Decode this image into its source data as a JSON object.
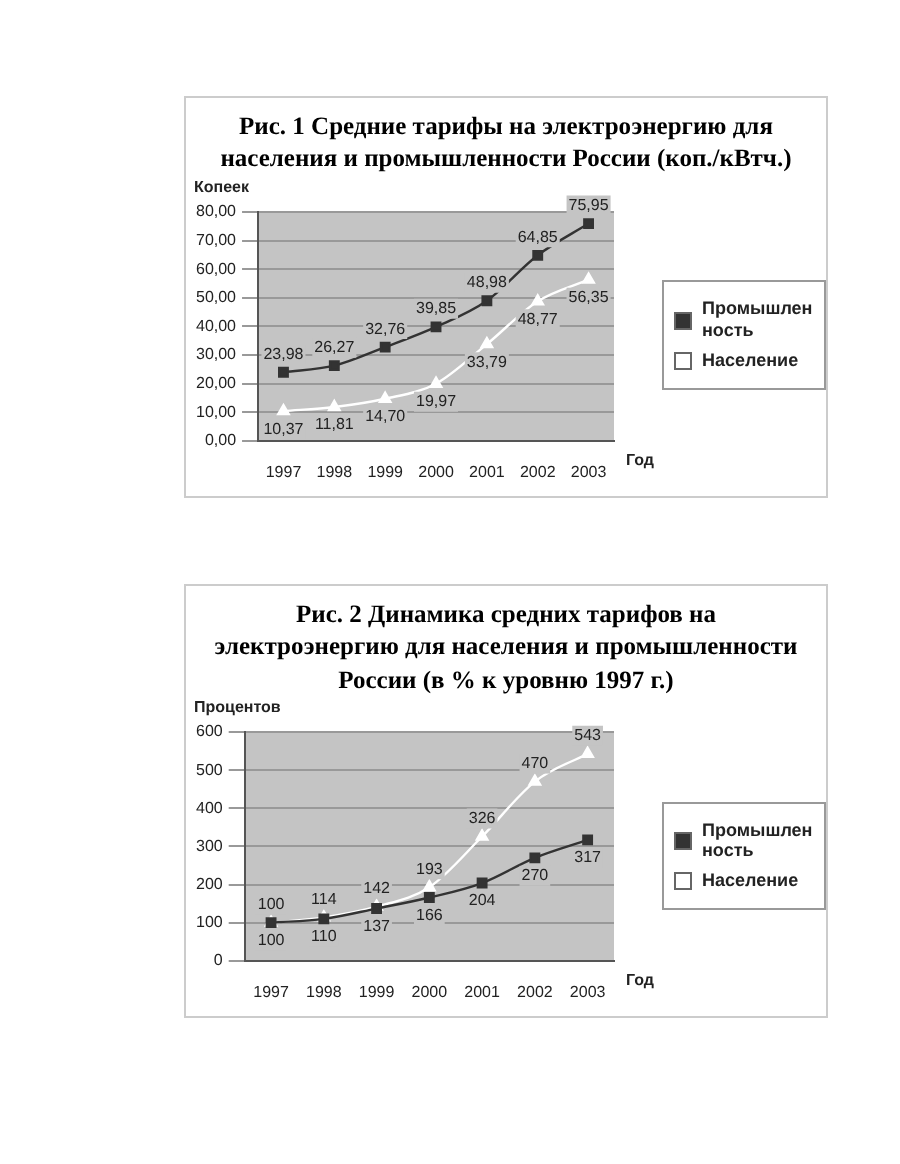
{
  "chart_data": [
    {
      "type": "line",
      "title": "Рис. 1 Средние тарифы на электроэнергию для населения и промышленности России (коп./кВтч.)",
      "ylabel": "Копеек",
      "xlabel": "Год",
      "categories": [
        "1997",
        "1998",
        "1999",
        "2000",
        "2001",
        "2002",
        "2003"
      ],
      "series": [
        {
          "name": "Промышленность",
          "color": "#333333",
          "marker": "square",
          "values": [
            23.98,
            26.27,
            32.76,
            39.85,
            48.98,
            64.85,
            75.95
          ],
          "value_labels": [
            "23,98",
            "26,27",
            "32,76",
            "39,85",
            "48,98",
            "64,85",
            "75,95"
          ]
        },
        {
          "name": "Население",
          "color": "#ffffff",
          "marker": "triangle",
          "values": [
            10.37,
            11.81,
            14.7,
            19.97,
            33.79,
            48.77,
            56.35
          ],
          "value_labels": [
            "10,37",
            "11,81",
            "14,70",
            "19,97",
            "33,79",
            "48,77",
            "56,35"
          ]
        }
      ],
      "ylim": [
        0,
        80
      ],
      "yticks": [
        {
          "value": 0,
          "label": "0,00"
        },
        {
          "value": 10,
          "label": "10,00"
        },
        {
          "value": 20,
          "label": "20,00"
        },
        {
          "value": 30,
          "label": "30,00"
        },
        {
          "value": 40,
          "label": "40,00"
        },
        {
          "value": 50,
          "label": "50,00"
        },
        {
          "value": 60,
          "label": "60,00"
        },
        {
          "value": 70,
          "label": "70,00"
        },
        {
          "value": 80,
          "label": "80,00"
        }
      ],
      "grid": "y",
      "legend": "right",
      "line_style": "solid"
    },
    {
      "type": "line",
      "title": "Рис. 2 Динамика средних тарифов на электроэнергию для населения и промышленности России (в % к уровню 1997 г.)",
      "ylabel": "Процентов",
      "xlabel": "Год",
      "categories": [
        "1997",
        "1998",
        "1999",
        "2000",
        "2001",
        "2002",
        "2003"
      ],
      "series": [
        {
          "name": "Промышленность",
          "color": "#333333",
          "marker": "square",
          "values": [
            100,
            110,
            137,
            166,
            204,
            270,
            317
          ]
        },
        {
          "name": "Население",
          "color": "#ffffff",
          "marker": "triangle",
          "values": [
            100,
            114,
            142,
            193,
            326,
            470,
            543
          ]
        }
      ],
      "ylim": [
        0,
        600
      ],
      "yticks": [
        0,
        100,
        200,
        300,
        400,
        500,
        600
      ],
      "data_labels": true,
      "grid": "y",
      "legend": "right",
      "line_style": "solid"
    }
  ]
}
